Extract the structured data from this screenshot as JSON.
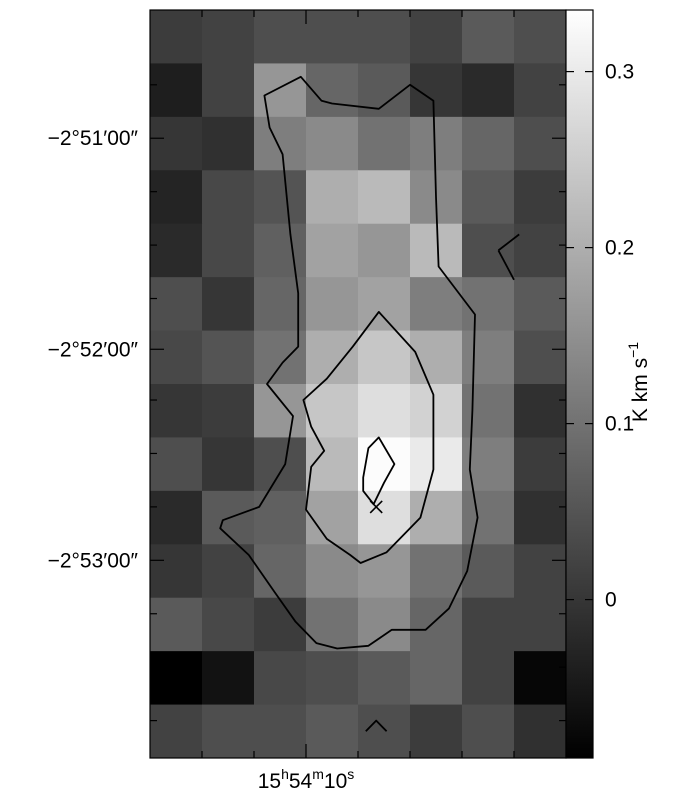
{
  "chart_data": {
    "type": "heatmap",
    "title": "",
    "grid": false,
    "colormap": "grayscale",
    "n_cols": 8,
    "n_rows": 14,
    "values": [
      [
        0.01,
        0.02,
        0.04,
        0.04,
        0.04,
        0.02,
        0.06,
        0.04
      ],
      [
        -0.04,
        0.02,
        0.16,
        0.08,
        0.06,
        0.0,
        -0.02,
        0.02
      ],
      [
        0.0,
        -0.01,
        0.12,
        0.14,
        0.1,
        0.12,
        0.08,
        0.04
      ],
      [
        -0.03,
        0.03,
        0.05,
        0.2,
        0.22,
        0.14,
        0.06,
        0.01
      ],
      [
        -0.02,
        0.03,
        0.07,
        0.18,
        0.16,
        0.22,
        0.04,
        0.02
      ],
      [
        0.04,
        0.0,
        0.08,
        0.16,
        0.18,
        0.12,
        0.1,
        0.06
      ],
      [
        0.03,
        0.05,
        0.1,
        0.2,
        0.24,
        0.2,
        0.12,
        0.04
      ],
      [
        0.0,
        0.01,
        0.16,
        0.24,
        0.28,
        0.26,
        0.1,
        -0.01
      ],
      [
        0.04,
        0.0,
        0.04,
        0.22,
        0.33,
        0.3,
        0.12,
        0.01
      ],
      [
        -0.02,
        0.06,
        0.07,
        0.18,
        0.28,
        0.2,
        0.1,
        -0.01
      ],
      [
        0.0,
        0.02,
        0.08,
        0.14,
        0.16,
        0.1,
        0.06,
        0.02
      ],
      [
        0.06,
        0.03,
        0.01,
        0.1,
        0.14,
        0.08,
        0.02,
        0.02
      ],
      [
        -0.09,
        -0.06,
        0.03,
        0.04,
        0.06,
        0.08,
        0.02,
        -0.08
      ],
      [
        0.02,
        0.04,
        0.04,
        0.06,
        0.04,
        0.01,
        0.04,
        -0.01
      ]
    ],
    "colorbar": {
      "min": -0.09,
      "max": 0.335,
      "ticks": [
        {
          "value": 0.3,
          "label": "0.3"
        },
        {
          "value": 0.2,
          "label": "0.2"
        },
        {
          "value": 0.1,
          "label": "0.1"
        },
        {
          "value": 0.0,
          "label": "0"
        }
      ],
      "label": "K km s",
      "label_superscript": "−1"
    },
    "y_axis": {
      "range_rows": [
        0,
        14
      ],
      "ticks": [
        {
          "row": 2.4,
          "d": "−2°51′00″"
        },
        {
          "row": 6.35,
          "d": "−2°52′00″"
        },
        {
          "row": 10.3,
          "d": "−2°53′00″"
        }
      ],
      "minor_tick_rows": [
        1.4,
        3.4,
        4.4,
        5.4,
        7.3,
        8.3,
        9.3,
        11.3,
        12.3,
        13.3
      ]
    },
    "x_axis": {
      "range_cols": [
        0,
        8
      ],
      "ticks": [
        {
          "col": 3.0,
          "h": "15",
          "h_unit": "h",
          "m": "54",
          "m_unit": "m",
          "s": "10",
          "s_unit": "s"
        }
      ],
      "minor_tick_cols": [
        1.0,
        2.0,
        4.0,
        5.0,
        6.0,
        7.0
      ]
    },
    "contours": [
      {
        "level": "low",
        "closed": true,
        "points": [
          [
            2.2,
            1.6
          ],
          [
            2.9,
            1.25
          ],
          [
            3.3,
            1.7
          ],
          [
            3.5,
            1.75
          ],
          [
            4.4,
            1.85
          ],
          [
            5.0,
            1.4
          ],
          [
            5.45,
            1.7
          ],
          [
            5.5,
            3.5
          ],
          [
            5.55,
            4.8
          ],
          [
            6.25,
            5.7
          ],
          [
            6.2,
            7.5
          ],
          [
            6.15,
            8.6
          ],
          [
            6.3,
            9.5
          ],
          [
            6.1,
            10.5
          ],
          [
            5.75,
            11.2
          ],
          [
            5.3,
            11.6
          ],
          [
            4.65,
            11.6
          ],
          [
            4.2,
            11.9
          ],
          [
            3.6,
            11.95
          ],
          [
            3.2,
            11.85
          ],
          [
            2.8,
            11.45
          ],
          [
            2.4,
            10.9
          ],
          [
            1.9,
            10.2
          ],
          [
            1.35,
            9.7
          ],
          [
            1.4,
            9.55
          ],
          [
            2.1,
            9.3
          ],
          [
            2.6,
            8.5
          ],
          [
            2.75,
            7.6
          ],
          [
            2.25,
            7.0
          ],
          [
            2.55,
            6.6
          ],
          [
            2.85,
            6.3
          ],
          [
            2.85,
            5.3
          ],
          [
            2.7,
            4.2
          ],
          [
            2.55,
            2.7
          ],
          [
            2.3,
            2.2
          ]
        ]
      },
      {
        "level": "mid",
        "closed": true,
        "points": [
          [
            4.4,
            5.65
          ],
          [
            5.1,
            6.4
          ],
          [
            5.45,
            7.2
          ],
          [
            5.45,
            8.6
          ],
          [
            5.2,
            9.5
          ],
          [
            4.55,
            10.15
          ],
          [
            4.05,
            10.35
          ],
          [
            3.85,
            10.2
          ],
          [
            3.4,
            9.9
          ],
          [
            3.0,
            9.35
          ],
          [
            3.1,
            8.55
          ],
          [
            3.35,
            8.25
          ],
          [
            3.1,
            7.8
          ],
          [
            2.95,
            7.3
          ],
          [
            3.4,
            6.9
          ],
          [
            3.9,
            6.3
          ]
        ]
      },
      {
        "level": "high",
        "closed": true,
        "points": [
          [
            4.4,
            8.0
          ],
          [
            4.7,
            8.5
          ],
          [
            4.5,
            8.85
          ],
          [
            4.3,
            9.25
          ],
          [
            4.1,
            9.0
          ],
          [
            4.1,
            8.75
          ],
          [
            4.2,
            8.2
          ]
        ]
      },
      {
        "level": "low",
        "closed": false,
        "points": [
          [
            6.7,
            4.5
          ],
          [
            7.1,
            4.2
          ]
        ]
      },
      {
        "level": "low",
        "closed": false,
        "points": [
          [
            6.7,
            4.5
          ],
          [
            7.0,
            5.05
          ]
        ]
      },
      {
        "level": "low",
        "closed": false,
        "points": [
          [
            4.15,
            13.5
          ],
          [
            4.35,
            13.3
          ],
          [
            4.55,
            13.5
          ]
        ]
      }
    ],
    "markers": [
      {
        "shape": "x",
        "col": 4.35,
        "row": 9.3
      }
    ]
  }
}
